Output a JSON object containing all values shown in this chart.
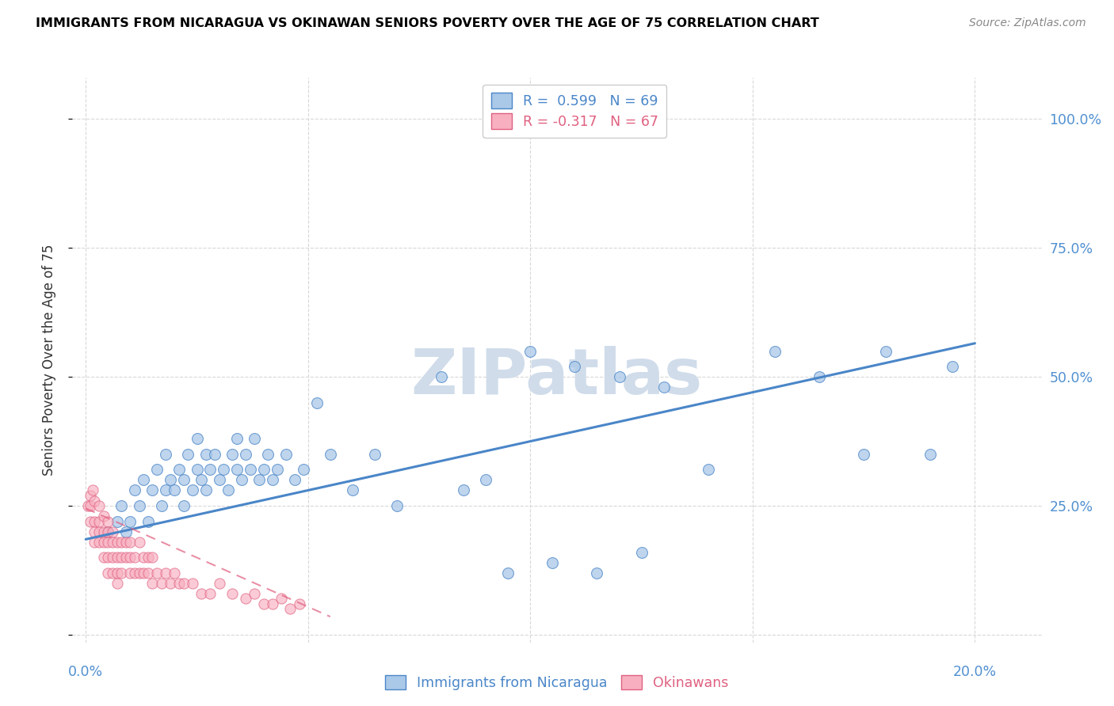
{
  "title": "IMMIGRANTS FROM NICARAGUA VS OKINAWAN SENIORS POVERTY OVER THE AGE OF 75 CORRELATION CHART",
  "source": "Source: ZipAtlas.com",
  "ylabel": "Seniors Poverty Over the Age of 75",
  "legend_blue_r": "R =  0.599",
  "legend_blue_n": "N = 69",
  "legend_pink_r": "R = -0.317",
  "legend_pink_n": "N = 67",
  "blue_color": "#aac8e8",
  "blue_line_color": "#4a86c8",
  "pink_color": "#f8b0c0",
  "pink_line_color": "#e06080",
  "watermark_color": "#d0dcea",
  "bg_color": "#ffffff",
  "grid_color": "#d8d8d8",
  "right_label_color": "#5090d0",
  "blue_scatter_x": [
    0.005,
    0.007,
    0.008,
    0.009,
    0.01,
    0.011,
    0.012,
    0.013,
    0.014,
    0.015,
    0.016,
    0.017,
    0.018,
    0.018,
    0.019,
    0.02,
    0.021,
    0.022,
    0.022,
    0.023,
    0.024,
    0.025,
    0.025,
    0.026,
    0.027,
    0.027,
    0.028,
    0.029,
    0.03,
    0.031,
    0.032,
    0.033,
    0.034,
    0.034,
    0.035,
    0.036,
    0.037,
    0.038,
    0.039,
    0.04,
    0.041,
    0.042,
    0.043,
    0.045,
    0.047,
    0.049,
    0.052,
    0.055,
    0.06,
    0.065,
    0.07,
    0.08,
    0.09,
    0.1,
    0.11,
    0.12,
    0.13,
    0.14,
    0.155,
    0.165,
    0.175,
    0.18,
    0.19,
    0.195,
    0.085,
    0.095,
    0.105,
    0.115,
    0.125
  ],
  "blue_scatter_y": [
    0.2,
    0.22,
    0.25,
    0.2,
    0.22,
    0.28,
    0.25,
    0.3,
    0.22,
    0.28,
    0.32,
    0.25,
    0.28,
    0.35,
    0.3,
    0.28,
    0.32,
    0.25,
    0.3,
    0.35,
    0.28,
    0.32,
    0.38,
    0.3,
    0.35,
    0.28,
    0.32,
    0.35,
    0.3,
    0.32,
    0.28,
    0.35,
    0.32,
    0.38,
    0.3,
    0.35,
    0.32,
    0.38,
    0.3,
    0.32,
    0.35,
    0.3,
    0.32,
    0.35,
    0.3,
    0.32,
    0.45,
    0.35,
    0.28,
    0.35,
    0.25,
    0.5,
    0.3,
    0.55,
    0.52,
    0.5,
    0.48,
    0.32,
    0.55,
    0.5,
    0.35,
    0.55,
    0.35,
    0.52,
    0.28,
    0.12,
    0.14,
    0.12,
    0.16
  ],
  "pink_scatter_x": [
    0.0005,
    0.001,
    0.001,
    0.001,
    0.0015,
    0.002,
    0.002,
    0.002,
    0.002,
    0.003,
    0.003,
    0.003,
    0.003,
    0.004,
    0.004,
    0.004,
    0.004,
    0.005,
    0.005,
    0.005,
    0.005,
    0.005,
    0.006,
    0.006,
    0.006,
    0.006,
    0.007,
    0.007,
    0.007,
    0.007,
    0.008,
    0.008,
    0.008,
    0.009,
    0.009,
    0.01,
    0.01,
    0.01,
    0.011,
    0.011,
    0.012,
    0.012,
    0.013,
    0.013,
    0.014,
    0.014,
    0.015,
    0.015,
    0.016,
    0.017,
    0.018,
    0.019,
    0.02,
    0.021,
    0.022,
    0.024,
    0.026,
    0.028,
    0.03,
    0.033,
    0.036,
    0.038,
    0.04,
    0.042,
    0.044,
    0.046,
    0.048
  ],
  "pink_scatter_y": [
    0.25,
    0.27,
    0.25,
    0.22,
    0.28,
    0.26,
    0.22,
    0.2,
    0.18,
    0.25,
    0.22,
    0.2,
    0.18,
    0.23,
    0.2,
    0.18,
    0.15,
    0.22,
    0.2,
    0.18,
    0.15,
    0.12,
    0.2,
    0.18,
    0.15,
    0.12,
    0.18,
    0.15,
    0.12,
    0.1,
    0.18,
    0.15,
    0.12,
    0.18,
    0.15,
    0.18,
    0.15,
    0.12,
    0.15,
    0.12,
    0.18,
    0.12,
    0.15,
    0.12,
    0.15,
    0.12,
    0.15,
    0.1,
    0.12,
    0.1,
    0.12,
    0.1,
    0.12,
    0.1,
    0.1,
    0.1,
    0.08,
    0.08,
    0.1,
    0.08,
    0.07,
    0.08,
    0.06,
    0.06,
    0.07,
    0.05,
    0.06
  ],
  "blue_line_x": [
    0.0,
    0.2
  ],
  "blue_line_y": [
    0.185,
    0.565
  ],
  "pink_line_x": [
    0.0,
    0.055
  ],
  "pink_line_y": [
    0.245,
    0.035
  ],
  "xlim": [
    -0.003,
    0.215
  ],
  "ylim": [
    -0.015,
    1.08
  ],
  "ytick_positions": [
    0.0,
    0.25,
    0.5,
    0.75,
    1.0
  ],
  "ytick_labels_right": [
    "",
    "25.0%",
    "50.0%",
    "75.0%",
    "100.0%"
  ],
  "xtick_positions": [
    0.0,
    0.05,
    0.1,
    0.15,
    0.2
  ],
  "xtick_labels_shown": {
    "0.0": "0.0%",
    "0.2": "20.0%"
  }
}
